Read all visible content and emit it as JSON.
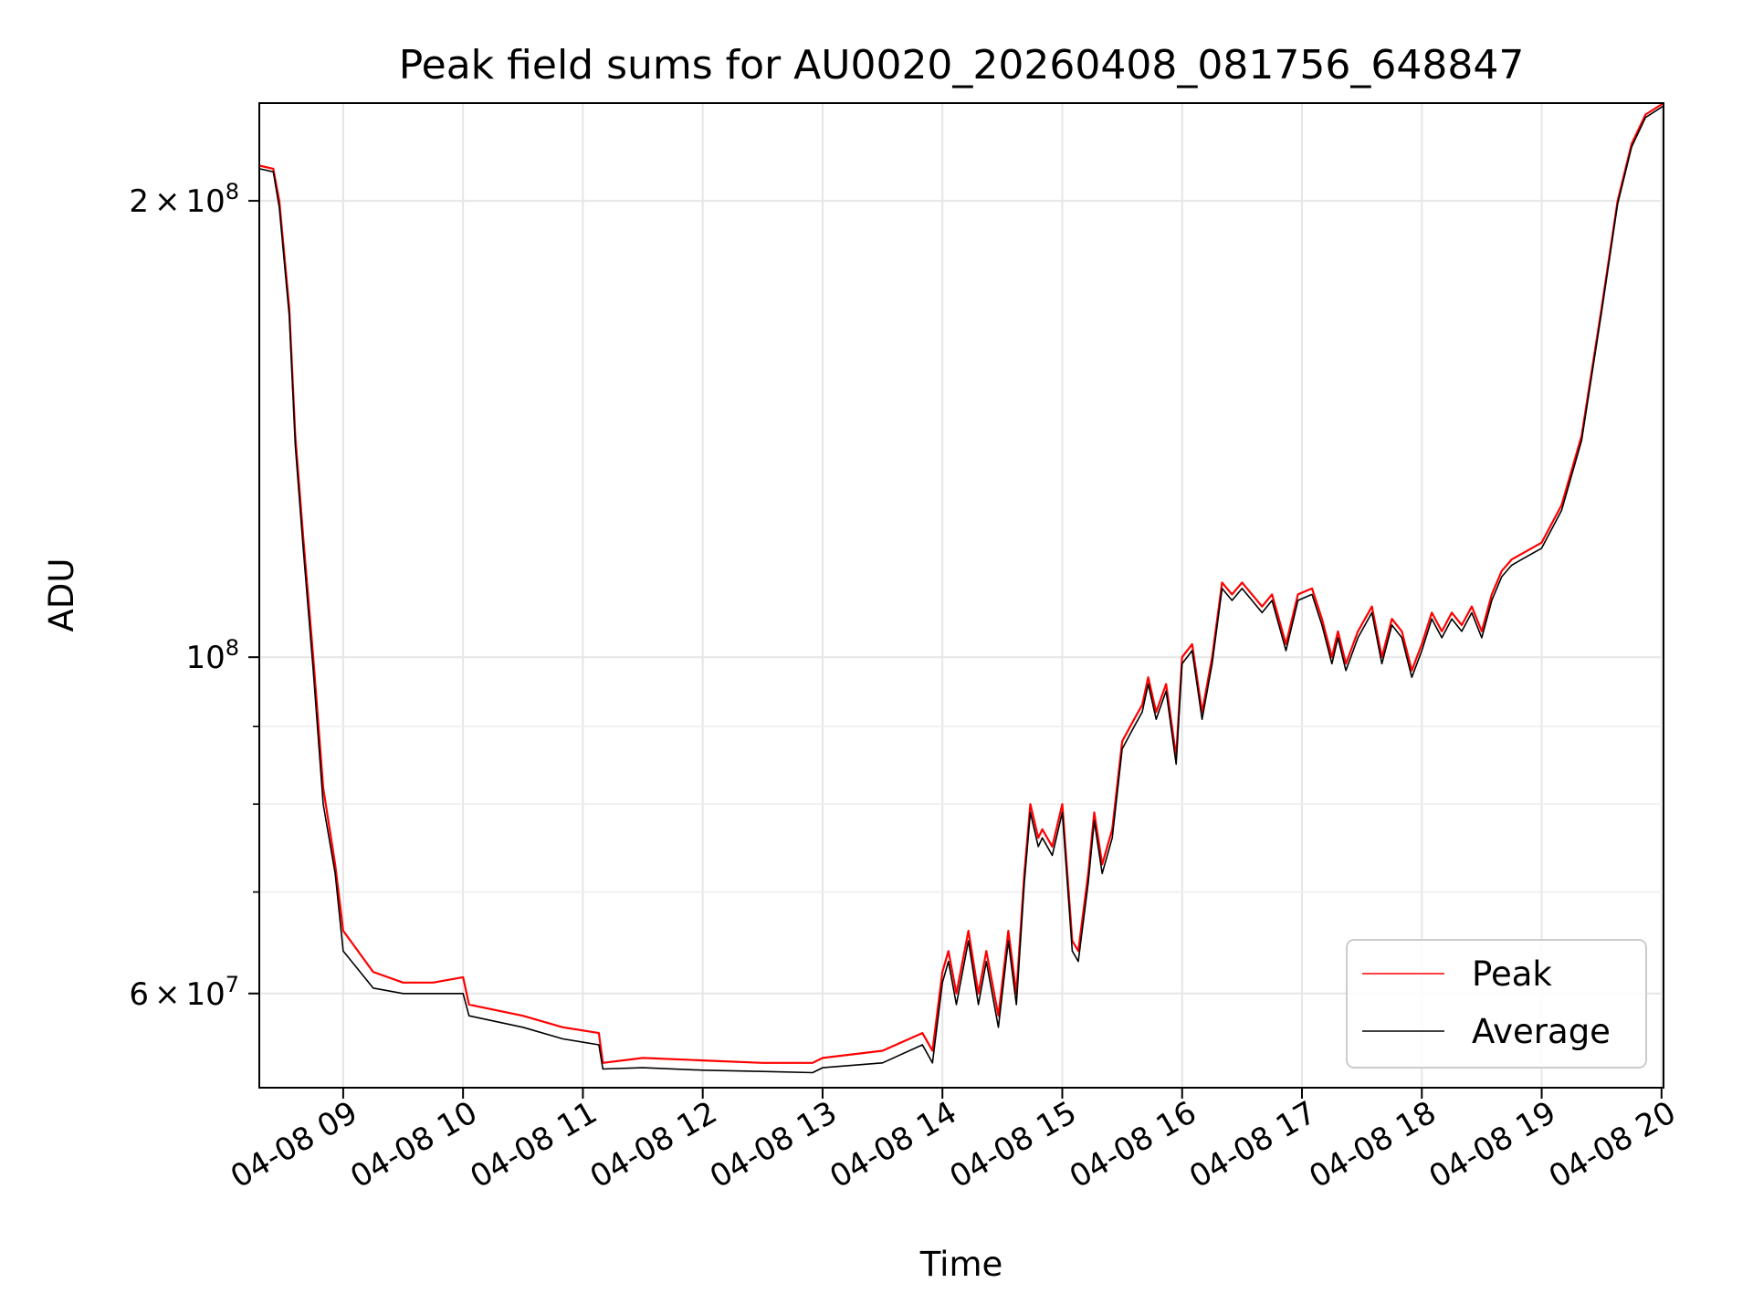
{
  "chart_data": {
    "type": "line",
    "title": "Peak field sums for AU0020_20260408_081756_648847",
    "xlabel": "Time",
    "ylabel": "ADU",
    "yscale": "log",
    "ylim": [
      52000000,
      232000000
    ],
    "xlim": [
      "04-08 08:18",
      "04-08 20:01"
    ],
    "grid": true,
    "legend_position": "lower-right",
    "x_ticks": [
      "04-08 09",
      "04-08 10",
      "04-08 11",
      "04-08 12",
      "04-08 13",
      "04-08 14",
      "04-08 15",
      "04-08 16",
      "04-08 17",
      "04-08 18",
      "04-08 19",
      "04-08 20"
    ],
    "y_ticks": [
      {
        "value": 60000000,
        "mantissa": "6",
        "exp": "7",
        "sci": true
      },
      {
        "value": 100000000,
        "mantissa": "",
        "exp": "8",
        "sci": false
      },
      {
        "value": 200000000,
        "mantissa": "2",
        "exp": "8",
        "sci": true
      }
    ],
    "y_minor_ticks": [
      70000000,
      80000000,
      90000000
    ],
    "x": [
      "04-08 08:18",
      "04-08 08:25",
      "04-08 08:28",
      "04-08 08:33",
      "04-08 08:36",
      "04-08 08:40",
      "04-08 08:45",
      "04-08 08:50",
      "04-08 08:56",
      "04-08 09:00",
      "04-08 09:15",
      "04-08 09:30",
      "04-08 09:45",
      "04-08 10:00",
      "04-08 10:03",
      "04-08 10:30",
      "04-08 10:50",
      "04-08 11:08",
      "04-08 11:10",
      "04-08 11:30",
      "04-08 12:00",
      "04-08 12:30",
      "04-08 12:55",
      "04-08 13:00",
      "04-08 13:30",
      "04-08 13:50",
      "04-08 13:55",
      "04-08 14:00",
      "04-08 14:03",
      "04-08 14:07",
      "04-08 14:13",
      "04-08 14:18",
      "04-08 14:22",
      "04-08 14:28",
      "04-08 14:33",
      "04-08 14:37",
      "04-08 14:41",
      "04-08 14:44",
      "04-08 14:48",
      "04-08 14:50",
      "04-08 14:55",
      "04-08 15:00",
      "04-08 15:05",
      "04-08 15:08",
      "04-08 15:13",
      "04-08 15:16",
      "04-08 15:20",
      "04-08 15:25",
      "04-08 15:30",
      "04-08 15:36",
      "04-08 15:40",
      "04-08 15:43",
      "04-08 15:47",
      "04-08 15:52",
      "04-08 15:57",
      "04-08 16:00",
      "04-08 16:05",
      "04-08 16:10",
      "04-08 16:15",
      "04-08 16:20",
      "04-08 16:25",
      "04-08 16:30",
      "04-08 16:35",
      "04-08 16:40",
      "04-08 16:45",
      "04-08 16:52",
      "04-08 16:58",
      "04-08 17:05",
      "04-08 17:10",
      "04-08 17:15",
      "04-08 17:18",
      "04-08 17:22",
      "04-08 17:28",
      "04-08 17:35",
      "04-08 17:40",
      "04-08 17:45",
      "04-08 17:50",
      "04-08 17:55",
      "04-08 18:00",
      "04-08 18:05",
      "04-08 18:10",
      "04-08 18:15",
      "04-08 18:20",
      "04-08 18:25",
      "04-08 18:30",
      "04-08 18:35",
      "04-08 18:40",
      "04-08 18:45",
      "04-08 18:50",
      "04-08 19:00",
      "04-08 19:10",
      "04-08 19:20",
      "04-08 19:30",
      "04-08 19:38",
      "04-08 19:45",
      "04-08 19:52",
      "04-08 20:01"
    ],
    "series": [
      {
        "name": "Peak",
        "color": "#ff0000",
        "values": [
          211000000,
          210000000,
          200000000,
          170000000,
          140000000,
          120000000,
          100000000,
          82000000,
          73000000,
          66000000,
          62000000,
          61000000,
          61000000,
          61500000,
          59000000,
          58000000,
          57000000,
          56500000,
          54000000,
          54400000,
          54200000,
          54000000,
          54000000,
          54400000,
          55000000,
          56500000,
          55000000,
          62000000,
          64000000,
          60000000,
          66000000,
          60000000,
          64000000,
          58000000,
          66000000,
          60000000,
          72000000,
          80000000,
          76000000,
          77000000,
          75000000,
          80000000,
          65000000,
          64000000,
          72000000,
          79000000,
          73000000,
          77000000,
          88000000,
          91000000,
          93000000,
          97000000,
          92000000,
          96000000,
          86000000,
          100000000,
          102000000,
          92000000,
          100000000,
          112000000,
          110000000,
          112000000,
          110000000,
          108000000,
          110000000,
          102000000,
          110000000,
          111000000,
          106000000,
          100000000,
          104000000,
          99000000,
          104000000,
          108000000,
          100000000,
          106000000,
          104000000,
          98000000,
          102000000,
          107000000,
          104000000,
          107000000,
          105000000,
          108000000,
          104000000,
          110000000,
          114000000,
          116000000,
          117000000,
          119000000,
          126000000,
          140000000,
          170000000,
          200000000,
          218000000,
          228000000,
          232000000
        ]
      },
      {
        "name": "Average",
        "color": "#000000",
        "values": [
          210000000,
          209000000,
          198000000,
          168000000,
          138000000,
          118000000,
          98000000,
          80000000,
          72000000,
          64000000,
          60500000,
          60000000,
          60000000,
          60000000,
          58000000,
          57000000,
          56000000,
          55500000,
          53500000,
          53600000,
          53400000,
          53300000,
          53200000,
          53600000,
          54000000,
          55500000,
          54000000,
          61000000,
          63000000,
          59000000,
          65000000,
          59000000,
          63000000,
          57000000,
          65000000,
          59000000,
          71000000,
          79000000,
          75000000,
          76000000,
          74000000,
          79000000,
          64000000,
          63000000,
          71000000,
          78000000,
          72000000,
          76000000,
          87000000,
          90000000,
          92000000,
          96000000,
          91000000,
          95000000,
          85000000,
          99000000,
          101000000,
          91000000,
          99000000,
          111000000,
          109000000,
          111000000,
          109000000,
          107000000,
          109000000,
          101000000,
          109000000,
          110000000,
          105000000,
          99000000,
          103000000,
          98000000,
          103000000,
          107000000,
          99000000,
          105000000,
          103000000,
          97000000,
          101000000,
          106000000,
          103000000,
          106000000,
          104000000,
          107000000,
          103000000,
          109000000,
          113000000,
          115000000,
          116000000,
          118000000,
          125000000,
          139000000,
          169000000,
          199000000,
          217000000,
          227000000,
          231000000
        ]
      }
    ]
  }
}
